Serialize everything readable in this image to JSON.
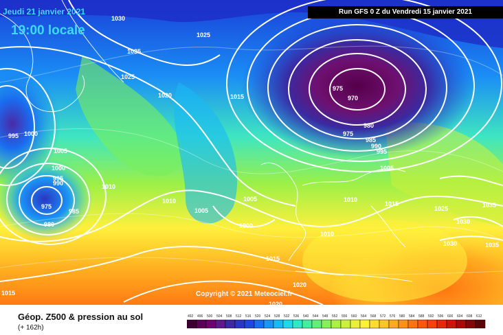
{
  "map": {
    "date_line": "Jeudi 21 janvier 2021",
    "time_line": "19:00 locale",
    "run_label": "Run GFS 0 Z du Vendredi 15 janvier 2021",
    "copyright": "Copyright © 2021 Meteociel.fr"
  },
  "legend": {
    "title": "Géop. Z500 & pression au sol",
    "subtitle": "(+ 162h)",
    "scale_values": [
      492,
      496,
      500,
      504,
      508,
      512,
      516,
      520,
      524,
      528,
      532,
      536,
      540,
      544,
      548,
      552,
      556,
      560,
      564,
      568,
      572,
      576,
      580,
      584,
      588,
      592,
      596,
      600,
      604,
      608,
      612
    ],
    "scale_colors": [
      "#3d0030",
      "#5a0055",
      "#6e0070",
      "#5e1a8c",
      "#3b2aa3",
      "#2a36c4",
      "#1d47e0",
      "#1a6cf0",
      "#1a94f5",
      "#19b9f5",
      "#1fd9ea",
      "#2ee8c8",
      "#44ee9e",
      "#62f07a",
      "#86f05a",
      "#aaf045",
      "#ccf03c",
      "#eaf03a",
      "#fff03c",
      "#ffdc32",
      "#ffc428",
      "#ffaa20",
      "#ff9018",
      "#ff7412",
      "#ff580e",
      "#f7400c",
      "#e6280a",
      "#cc1408",
      "#a80a08",
      "#800608",
      "#5a0406"
    ]
  },
  "isobars": [
    {
      "label": "1030",
      "tag": "isobar-1030-a"
    },
    {
      "label": "1025",
      "tag": "isobar-1025-a"
    },
    {
      "label": "1035",
      "tag": "isobar-1035-a"
    },
    {
      "label": "1025",
      "tag": "isobar-1025-b"
    },
    {
      "label": "1020",
      "tag": "isobar-1020-a"
    },
    {
      "label": "1015",
      "tag": "isobar-1015-a"
    },
    {
      "label": "995",
      "tag": "isobar-995-a"
    },
    {
      "label": "1000",
      "tag": "isobar-1000-a"
    },
    {
      "label": "1005",
      "tag": "isobar-1005-a"
    },
    {
      "label": "1000",
      "tag": "isobar-1000-b"
    },
    {
      "label": "995",
      "tag": "isobar-995-b"
    },
    {
      "label": "990",
      "tag": "isobar-990-a"
    },
    {
      "label": "975",
      "tag": "isobar-975-a"
    },
    {
      "label": "980",
      "tag": "isobar-980-a"
    },
    {
      "label": "985",
      "tag": "isobar-985-a"
    },
    {
      "label": "1010",
      "tag": "isobar-1010-a"
    },
    {
      "label": "1010",
      "tag": "isobar-1010-b"
    },
    {
      "label": "1005",
      "tag": "isobar-1005-b"
    },
    {
      "label": "1005",
      "tag": "isobar-1005-c"
    },
    {
      "label": "1000",
      "tag": "isobar-1000-c"
    },
    {
      "label": "975",
      "tag": "isobar-975-b"
    },
    {
      "label": "970",
      "tag": "isobar-970-a"
    },
    {
      "label": "980",
      "tag": "isobar-980-b"
    },
    {
      "label": "975",
      "tag": "isobar-975-c"
    },
    {
      "label": "985",
      "tag": "isobar-985-b"
    },
    {
      "label": "990",
      "tag": "isobar-990-b"
    },
    {
      "label": "995",
      "tag": "isobar-995-c"
    },
    {
      "label": "1005",
      "tag": "isobar-1005-d"
    },
    {
      "label": "1010",
      "tag": "isobar-1010-c"
    },
    {
      "label": "1015",
      "tag": "isobar-1015-b"
    },
    {
      "label": "1025",
      "tag": "isobar-1025-c"
    },
    {
      "label": "1035",
      "tag": "isobar-1035-b"
    },
    {
      "label": "1030",
      "tag": "isobar-1030-b"
    },
    {
      "label": "1010",
      "tag": "isobar-1010-d"
    },
    {
      "label": "1030",
      "tag": "isobar-1030-c"
    },
    {
      "label": "1035",
      "tag": "isobar-1035-c"
    },
    {
      "label": "1015",
      "tag": "isobar-1015-c"
    },
    {
      "label": "1020",
      "tag": "isobar-1020-b"
    },
    {
      "label": "1015",
      "tag": "isobar-1015-d"
    },
    {
      "label": "1020",
      "tag": "isobar-1020-c"
    },
    {
      "label": "1030",
      "tag": "isobar-1030-d"
    },
    {
      "label": "1035",
      "tag": "isobar-1035-d"
    }
  ]
}
